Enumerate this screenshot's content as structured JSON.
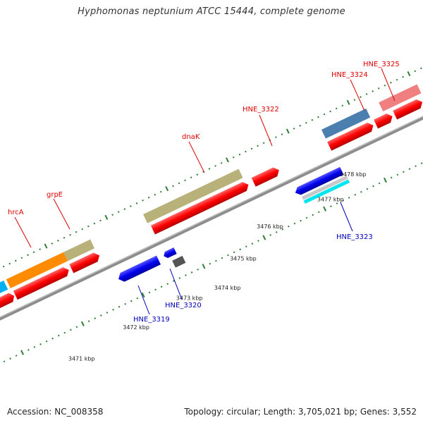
{
  "title": "Hyphomonas neptunium ATCC 15444, complete genome",
  "footer": {
    "accession": "Accession: NC_008358",
    "summary": "Topology: circular; Length: 3,705,021 bp; Genes: 3,552"
  },
  "scale_labels": [
    "3471 kbp",
    "3472 kbp",
    "3473 kbp",
    "3474 kbp",
    "3475 kbp",
    "3476 kbp",
    "3477 kbp",
    "3478 kbp"
  ],
  "genes_forward": [
    "hrcA",
    "grpE",
    "dnaK",
    "HNE_3322",
    "HNE_3324",
    "HNE_3325"
  ],
  "genes_reverse": [
    "HNE_3319",
    "HNE_3320",
    "HNE_3323"
  ],
  "colors": {
    "backbone": "#808080",
    "tick": "#2e7d32",
    "forward_label": "#dd0000",
    "reverse_label": "#0000bb",
    "cds_red": "#ff0000",
    "gene_khaki": "#b8b27a",
    "gene_orange": "#ff8c00",
    "gene_blue": "#0000ee",
    "gene_steel": "#4a7fb0",
    "gene_pink": "#f08080",
    "gene_cyan": "#00e5ee",
    "gene_gray": "#555555",
    "gene_lightgray": "#c8c8c8",
    "gene_skyblue": "#00b0f0"
  }
}
